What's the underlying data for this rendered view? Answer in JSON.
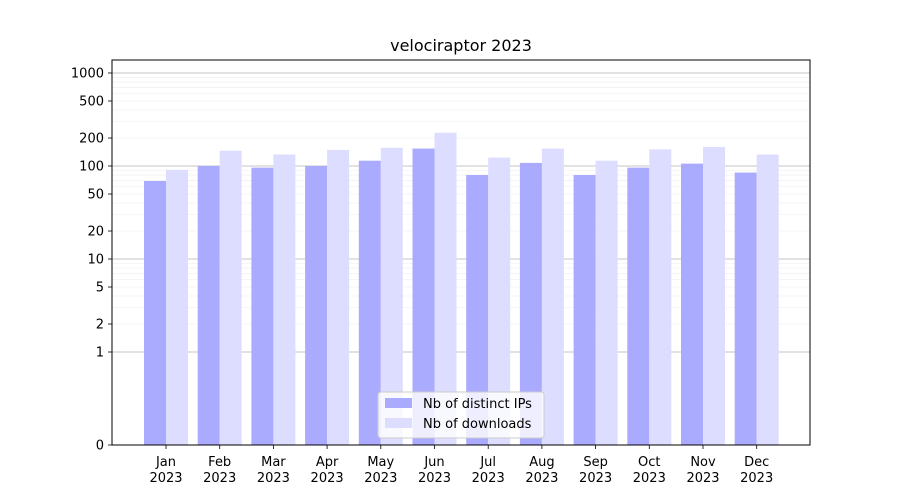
{
  "chart_data": {
    "type": "bar",
    "title": "velociraptor 2023",
    "xlabel": "",
    "ylabel": "",
    "scale": "symlog",
    "ylim": [
      0,
      1300
    ],
    "yticks": [
      0,
      1,
      2,
      5,
      10,
      20,
      50,
      100,
      200,
      500,
      1000
    ],
    "categories": [
      "Jan\n2023",
      "Feb\n2023",
      "Mar\n2023",
      "Apr\n2023",
      "May\n2023",
      "Jun\n2023",
      "Jul\n2023",
      "Aug\n2023",
      "Sep\n2023",
      "Oct\n2023",
      "Nov\n2023",
      "Dec\n2023"
    ],
    "series": [
      {
        "name": "Nb of distinct IPs",
        "color": "#aaaaff",
        "values": [
          69,
          100,
          96,
          100,
          114,
          154,
          80,
          108,
          80,
          96,
          106,
          85
        ]
      },
      {
        "name": "Nb of downloads",
        "color": "#ddddff",
        "values": [
          91,
          146,
          133,
          149,
          157,
          228,
          123,
          154,
          114,
          151,
          160,
          133
        ]
      }
    ],
    "grid": true,
    "legend": "lower-center"
  }
}
